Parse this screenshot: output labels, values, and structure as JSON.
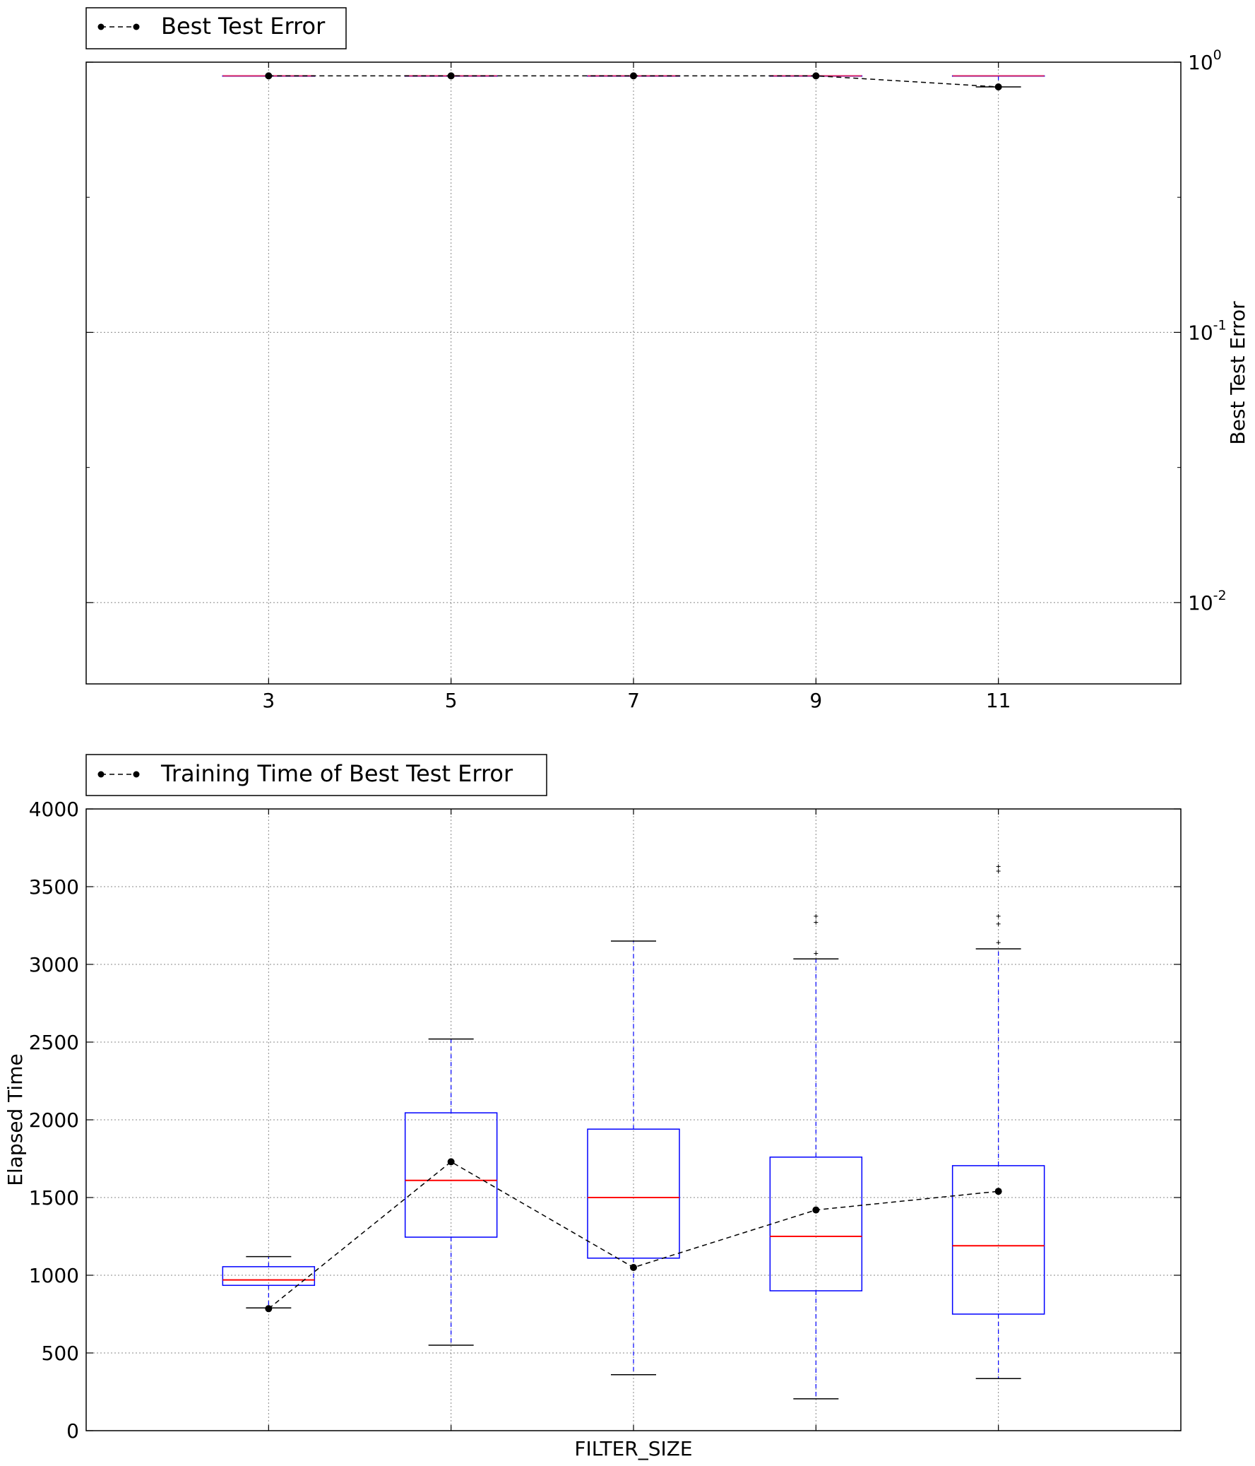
{
  "chart_data": [
    {
      "type": "box",
      "legend": {
        "label": "Best Test Error",
        "placement": "top-left-outside"
      },
      "x_ticks": [
        "3",
        "5",
        "7",
        "9",
        "11"
      ],
      "x": [
        3,
        5,
        7,
        9,
        11
      ],
      "xlim": [
        1,
        13
      ],
      "ylabel": "Best Test Error",
      "y_axis_side": "right",
      "y_scale": "log",
      "ylim": [
        0.005,
        1.0
      ],
      "y_ticks": [
        {
          "value": 1,
          "base": "10",
          "exp": "0"
        },
        {
          "value": 0.1,
          "base": "10",
          "exp": "-1"
        },
        {
          "value": 0.01,
          "base": "10",
          "exp": "-2"
        }
      ],
      "grid": true,
      "boxes": [
        {
          "x": 3,
          "q1": 0.89,
          "median": 0.89,
          "q3": 0.89,
          "whisker_low": 0.89,
          "whisker_high": 0.89
        },
        {
          "x": 5,
          "q1": 0.89,
          "median": 0.89,
          "q3": 0.89,
          "whisker_low": 0.89,
          "whisker_high": 0.89
        },
        {
          "x": 7,
          "q1": 0.89,
          "median": 0.89,
          "q3": 0.89,
          "whisker_low": 0.89,
          "whisker_high": 0.89
        },
        {
          "x": 9,
          "q1": 0.89,
          "median": 0.89,
          "q3": 0.89,
          "whisker_low": 0.89,
          "whisker_high": 0.89
        },
        {
          "x": 11,
          "q1": 0.89,
          "median": 0.89,
          "q3": 0.89,
          "whisker_low": 0.81,
          "whisker_high": 0.89
        }
      ],
      "series": [
        {
          "name": "Best Test Error",
          "style": "dashed-dot",
          "x": [
            3,
            5,
            7,
            9,
            11
          ],
          "values": [
            0.89,
            0.89,
            0.89,
            0.89,
            0.81
          ]
        }
      ]
    },
    {
      "type": "box",
      "legend": {
        "label": "Training Time of Best Test Error",
        "placement": "top-left-outside"
      },
      "x": [
        3,
        5,
        7,
        9,
        11
      ],
      "xlim": [
        1,
        13
      ],
      "xlabel": "FILTER_SIZE",
      "ylabel": "Elapsed Time",
      "y_axis_side": "left",
      "ylim": [
        0,
        4000
      ],
      "y_ticks": [
        "0",
        "500",
        "1000",
        "1500",
        "2000",
        "2500",
        "3000",
        "3500",
        "4000"
      ],
      "grid": true,
      "boxes": [
        {
          "x": 3,
          "q1": 935,
          "median": 970,
          "q3": 1055,
          "whisker_low": 790,
          "whisker_high": 1120,
          "outliers": []
        },
        {
          "x": 5,
          "q1": 1245,
          "median": 1610,
          "q3": 2045,
          "whisker_low": 550,
          "whisker_high": 2520,
          "outliers": []
        },
        {
          "x": 7,
          "q1": 1110,
          "median": 1500,
          "q3": 1940,
          "whisker_low": 360,
          "whisker_high": 3150,
          "outliers": []
        },
        {
          "x": 9,
          "q1": 900,
          "median": 1250,
          "q3": 1760,
          "whisker_low": 205,
          "whisker_high": 3035,
          "outliers": [
            3070,
            3270,
            3310
          ]
        },
        {
          "x": 11,
          "q1": 750,
          "median": 1190,
          "q3": 1705,
          "whisker_low": 335,
          "whisker_high": 3100,
          "outliers": [
            3140,
            3260,
            3310,
            3600,
            3630
          ]
        }
      ],
      "series": [
        {
          "name": "Training Time of Best Test Error",
          "style": "dashed-dot",
          "x": [
            3,
            5,
            7,
            9,
            11
          ],
          "values": [
            785,
            1730,
            1050,
            1420,
            1540
          ]
        }
      ]
    }
  ],
  "colors": {
    "box": "#0000ff",
    "median": "#ff0000",
    "series": "#000000",
    "grid": "#888888",
    "top_box_overlap": "#d62a6a"
  }
}
